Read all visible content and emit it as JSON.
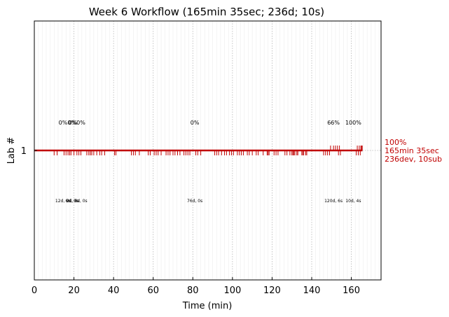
{
  "chart_data": {
    "type": "line",
    "title": "Week 6 Workflow (165min 35sec; 236d; 10s)",
    "xlabel": "Time (min)",
    "ylabel": "Lab #",
    "xlim": [
      0,
      175
    ],
    "xticks": [
      0,
      20,
      40,
      60,
      80,
      100,
      120,
      140,
      160
    ],
    "ytick_label": "1",
    "grid": true,
    "series": [
      {
        "color": "#c00000",
        "lab": 1,
        "end_x": 165.6,
        "dev_ticks": [
          10,
          11.5,
          15,
          16,
          17,
          17.8,
          18.5,
          20,
          21.5,
          22.5,
          23.5,
          26.5,
          27.5,
          28.3,
          29,
          30,
          31.5,
          33,
          34,
          35.5,
          40.5,
          41.2,
          49,
          50,
          51,
          53,
          57.5,
          58.5,
          60.5,
          61.5,
          62.5,
          64,
          66.5,
          67.5,
          68.5,
          70,
          71,
          72.3,
          73.5,
          75.5,
          76.5,
          77.5,
          78.5,
          81.5,
          82.5,
          84,
          91,
          92,
          93,
          94.5,
          96,
          97,
          98.5,
          99.5,
          100.5,
          102.5,
          103.5,
          104.5,
          105.5,
          107.5,
          108.5,
          110,
          112,
          113,
          115.5,
          117.5,
          118,
          118.5,
          121,
          122,
          123,
          126.5,
          127.5,
          129,
          130,
          130.5,
          131,
          131.5,
          132.5,
          133,
          135,
          135.5,
          136,
          137,
          137.5,
          146,
          147,
          148,
          149,
          153.5,
          154.5,
          162.5,
          163.5,
          164.5
        ],
        "sub_ticks": [
          149.5,
          151,
          152,
          153,
          154,
          163,
          164,
          164.8,
          165.2,
          165.5
        ],
        "annotations": [
          {
            "x": 14.5,
            "pct": "0%",
            "detail": "12d, 0s"
          },
          {
            "x": 19,
            "pct": "0%",
            "detail": "6d, 0s"
          },
          {
            "x": 19.5,
            "pct": "0%",
            "detail": "2d, 0s"
          },
          {
            "x": 23.5,
            "pct": "0%",
            "detail": "6d, 0s"
          },
          {
            "x": 81,
            "pct": "0%",
            "detail": "76d, 0s"
          },
          {
            "x": 151,
            "pct": "66%",
            "detail": "120d, 6s"
          },
          {
            "x": 161,
            "pct": "100%",
            "detail": "10d, 4s"
          }
        ],
        "summary": [
          "100%",
          "165min 35sec",
          "236dev, 10sub"
        ]
      }
    ]
  }
}
